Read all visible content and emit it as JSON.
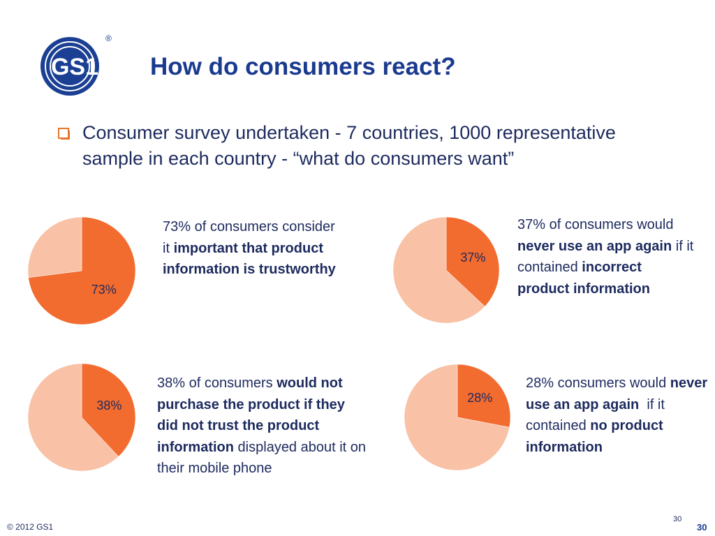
{
  "logo": {
    "text": "GS1",
    "mark": "®"
  },
  "title": "How do consumers react?",
  "bullet": "Consumer survey undertaken - 7 countries, 1000 representative sample in each country - “what do consumers want”",
  "chart_data": [
    {
      "type": "pie",
      "values": [
        73,
        27
      ],
      "value_labels": [
        "73%",
        null
      ],
      "colors": [
        "#f26b2f",
        "#f9c1a6"
      ],
      "caption": [
        {
          "text": "73% of consumers consider it ",
          "bold": false
        },
        {
          "text": "important that product information is trustworthy",
          "bold": true
        }
      ]
    },
    {
      "type": "pie",
      "values": [
        37,
        63
      ],
      "value_labels": [
        "37%",
        null
      ],
      "colors": [
        "#f26b2f",
        "#f9c1a6"
      ],
      "caption": [
        {
          "text": "37% of consumers would ",
          "bold": false
        },
        {
          "text": "never use an app again",
          "bold": true
        },
        {
          "text": " if it contained ",
          "bold": false
        },
        {
          "text": "incorrect product information",
          "bold": true
        }
      ]
    },
    {
      "type": "pie",
      "values": [
        38,
        62
      ],
      "value_labels": [
        "38%",
        null
      ],
      "colors": [
        "#f26b2f",
        "#f9c1a6"
      ],
      "caption": [
        {
          "text": "38% of consumers ",
          "bold": false
        },
        {
          "text": "would not purchase the product if they did not trust the product information",
          "bold": true
        },
        {
          "text": " displayed about it on their mobile phone",
          "bold": false
        }
      ]
    },
    {
      "type": "pie",
      "values": [
        28,
        72
      ],
      "value_labels": [
        "28%",
        null
      ],
      "colors": [
        "#f26b2f",
        "#f9c1a6"
      ],
      "caption": [
        {
          "text": "28% consumers would ",
          "bold": false
        },
        {
          "text": "never use an app again",
          "bold": true
        },
        {
          "text": "  if it contained ",
          "bold": false
        },
        {
          "text": "no product information",
          "bold": true
        }
      ]
    }
  ],
  "footer": {
    "copyright": "© 2012 GS1",
    "slide_number_small": "30",
    "slide_number": "30"
  }
}
